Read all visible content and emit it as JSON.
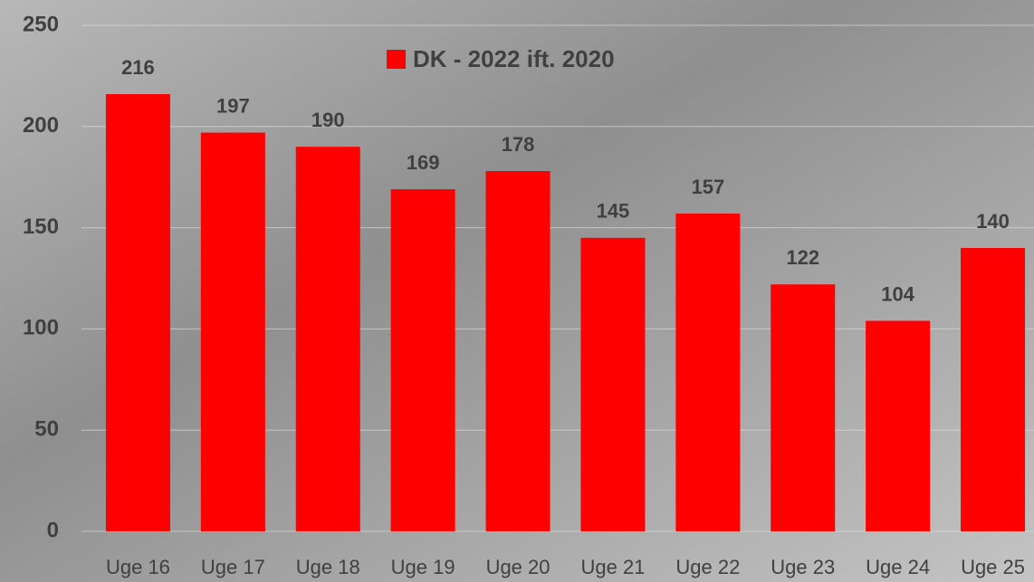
{
  "chart_data": {
    "type": "bar",
    "legend": "DK - 2022 ift. 2020",
    "categories": [
      "Uge 16",
      "Uge 17",
      "Uge 18",
      "Uge 19",
      "Uge 20",
      "Uge 21",
      "Uge 22",
      "Uge 23",
      "Uge 24",
      "Uge 25"
    ],
    "values": [
      216,
      197,
      190,
      169,
      178,
      145,
      157,
      122,
      104,
      140
    ],
    "color": "#ff0000",
    "ylim": [
      0,
      250
    ],
    "yticks": [
      0,
      50,
      100,
      150,
      200,
      250
    ],
    "grid": true,
    "legend_position": "top"
  }
}
